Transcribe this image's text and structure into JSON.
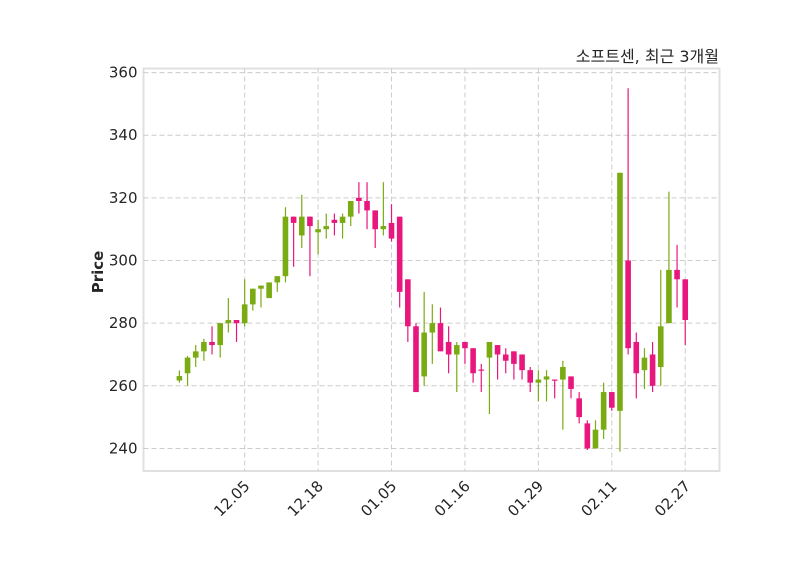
{
  "chart_data": {
    "type": "candlestick",
    "title": "소프트센, 최근 3개월",
    "xlabel": "",
    "ylabel": "Price",
    "ylim": [
      232.8,
      361.3
    ],
    "xlim": [
      -4.4,
      66.2
    ],
    "yticks": [
      240,
      260,
      280,
      300,
      320,
      340,
      360
    ],
    "xticks": [
      {
        "index": 8,
        "label": "12.05"
      },
      {
        "index": 17,
        "label": "12.18"
      },
      {
        "index": 26,
        "label": "01.05"
      },
      {
        "index": 35,
        "label": "01.16"
      },
      {
        "index": 44,
        "label": "01.29"
      },
      {
        "index": 53,
        "label": "02.11"
      },
      {
        "index": 62,
        "label": "02.27"
      }
    ],
    "grid": true,
    "colors": {
      "up": "#7aab12",
      "down": "#e8177e",
      "grid": "#cccccc",
      "frame": "#e0e0e0"
    },
    "ohlc": [
      [
        261.7,
        264.9,
        261,
        263.1
      ],
      [
        264,
        269.5,
        260,
        269
      ],
      [
        269,
        273,
        266,
        271
      ],
      [
        271,
        275,
        268,
        274
      ],
      [
        274,
        279,
        270,
        273
      ],
      [
        273,
        280,
        269,
        280
      ],
      [
        280,
        288,
        277,
        281
      ],
      [
        281,
        281,
        274,
        280
      ],
      [
        280,
        294,
        279,
        286
      ],
      [
        286,
        291,
        284,
        291
      ],
      [
        291,
        292,
        285,
        292
      ],
      [
        288,
        293,
        288,
        293
      ],
      [
        293,
        295,
        290,
        295
      ],
      [
        295,
        317,
        293,
        314
      ],
      [
        314,
        314,
        298,
        312
      ],
      [
        308,
        321,
        304,
        314
      ],
      [
        314,
        314,
        295,
        311
      ],
      [
        309,
        313,
        302,
        310
      ],
      [
        310,
        315,
        307,
        311
      ],
      [
        313,
        315,
        308,
        312
      ],
      [
        312,
        315,
        307,
        314
      ],
      [
        314,
        319,
        311,
        319
      ],
      [
        320,
        325,
        315,
        319
      ],
      [
        319,
        325,
        310,
        316
      ],
      [
        316,
        316,
        304,
        310
      ],
      [
        310,
        325,
        308,
        311
      ],
      [
        312,
        318,
        306,
        307
      ],
      [
        314,
        314,
        285,
        290
      ],
      [
        294,
        294,
        274,
        279
      ],
      [
        279,
        280,
        258,
        258
      ],
      [
        263,
        290,
        260,
        277
      ],
      [
        277,
        286,
        267,
        280
      ],
      [
        280,
        285,
        271,
        271
      ],
      [
        274,
        279,
        264,
        270
      ],
      [
        270,
        274,
        258,
        273
      ],
      [
        274,
        274,
        267,
        272
      ],
      [
        272,
        272,
        261,
        264
      ],
      [
        265.2,
        267,
        258,
        264.9
      ],
      [
        269,
        274,
        251,
        274
      ],
      [
        273,
        273,
        262,
        270
      ],
      [
        270,
        272,
        264,
        268
      ],
      [
        271,
        271,
        262,
        267
      ],
      [
        270,
        270,
        262,
        265
      ],
      [
        265,
        266,
        258,
        261
      ],
      [
        261,
        265,
        255,
        262
      ],
      [
        262,
        265,
        255,
        263
      ],
      [
        262,
        262,
        256,
        261.8
      ],
      [
        262,
        268,
        246,
        266
      ],
      [
        263,
        263,
        256,
        259
      ],
      [
        256,
        258,
        248,
        250
      ],
      [
        248,
        249,
        239.5,
        240
      ],
      [
        240,
        249,
        240,
        246
      ],
      [
        246,
        261,
        243,
        258
      ],
      [
        258,
        258,
        252,
        253
      ],
      [
        252,
        328,
        239,
        328
      ],
      [
        300,
        355,
        270,
        272
      ],
      [
        274,
        277,
        256,
        264
      ],
      [
        265,
        272,
        259,
        269
      ],
      [
        270,
        274,
        258,
        260
      ],
      [
        266,
        297,
        260,
        279
      ],
      [
        280,
        322,
        280,
        297
      ],
      [
        297,
        305,
        285,
        294
      ],
      [
        294,
        294,
        273,
        281
      ]
    ]
  }
}
